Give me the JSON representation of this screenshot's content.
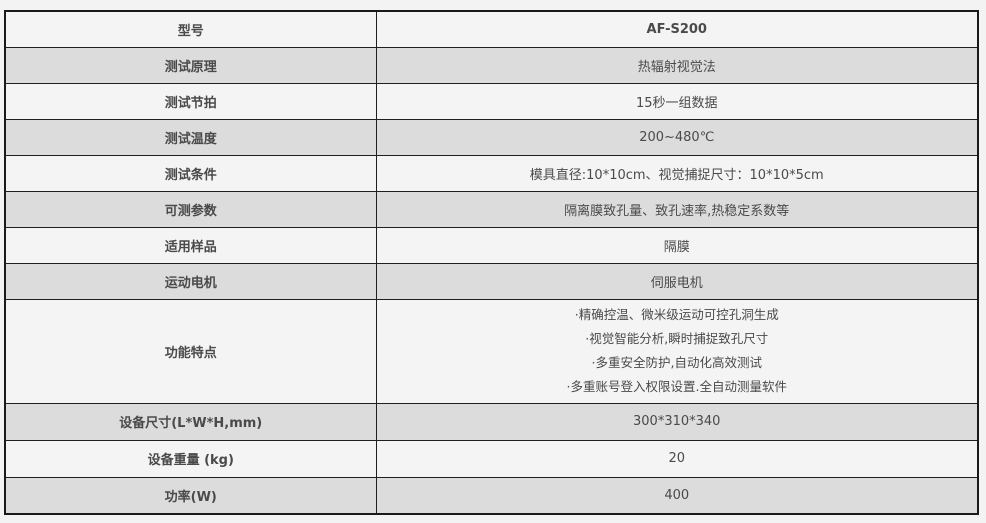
{
  "accent_colors": {
    "row_light_bg": "#f4f4f4",
    "row_shaded_bg": "#dcdcdc",
    "border": "#1f1f1f",
    "label_text": "#333333",
    "value_text": "#4a4a4a"
  },
  "table": {
    "rows": [
      {
        "label": "型号",
        "value": "AF-S200"
      },
      {
        "label": "测试原理",
        "value": "热辐射视觉法"
      },
      {
        "label": "测试节拍",
        "value": "15秒一组数据"
      },
      {
        "label": "测试温度",
        "value": "200~480℃"
      },
      {
        "label": "测试条件",
        "value": "模具直径:10*10cm、视觉捕捉尺寸：10*10*5cm"
      },
      {
        "label": "可测参数",
        "value": "隔离膜致孔量、致孔速率,热稳定系数等"
      },
      {
        "label": "适用样品",
        "value": "隔膜"
      },
      {
        "label": "运动电机",
        "value": "伺服电机"
      },
      {
        "label": "功能特点",
        "lines": [
          "·精确控温、微米级运动可控孔洞生成",
          "·视觉智能分析,瞬时捕捉致孔尺寸",
          "·多重安全防护,自动化高效测试",
          "·多重账号登入权限设置.全自动测量软件"
        ]
      },
      {
        "label": "设备尺寸(L*W*H,mm)",
        "value": "300*310*340"
      },
      {
        "label": "设备重量 (kg)",
        "value": "20"
      },
      {
        "label": "功率(W)",
        "value": "400"
      }
    ]
  }
}
